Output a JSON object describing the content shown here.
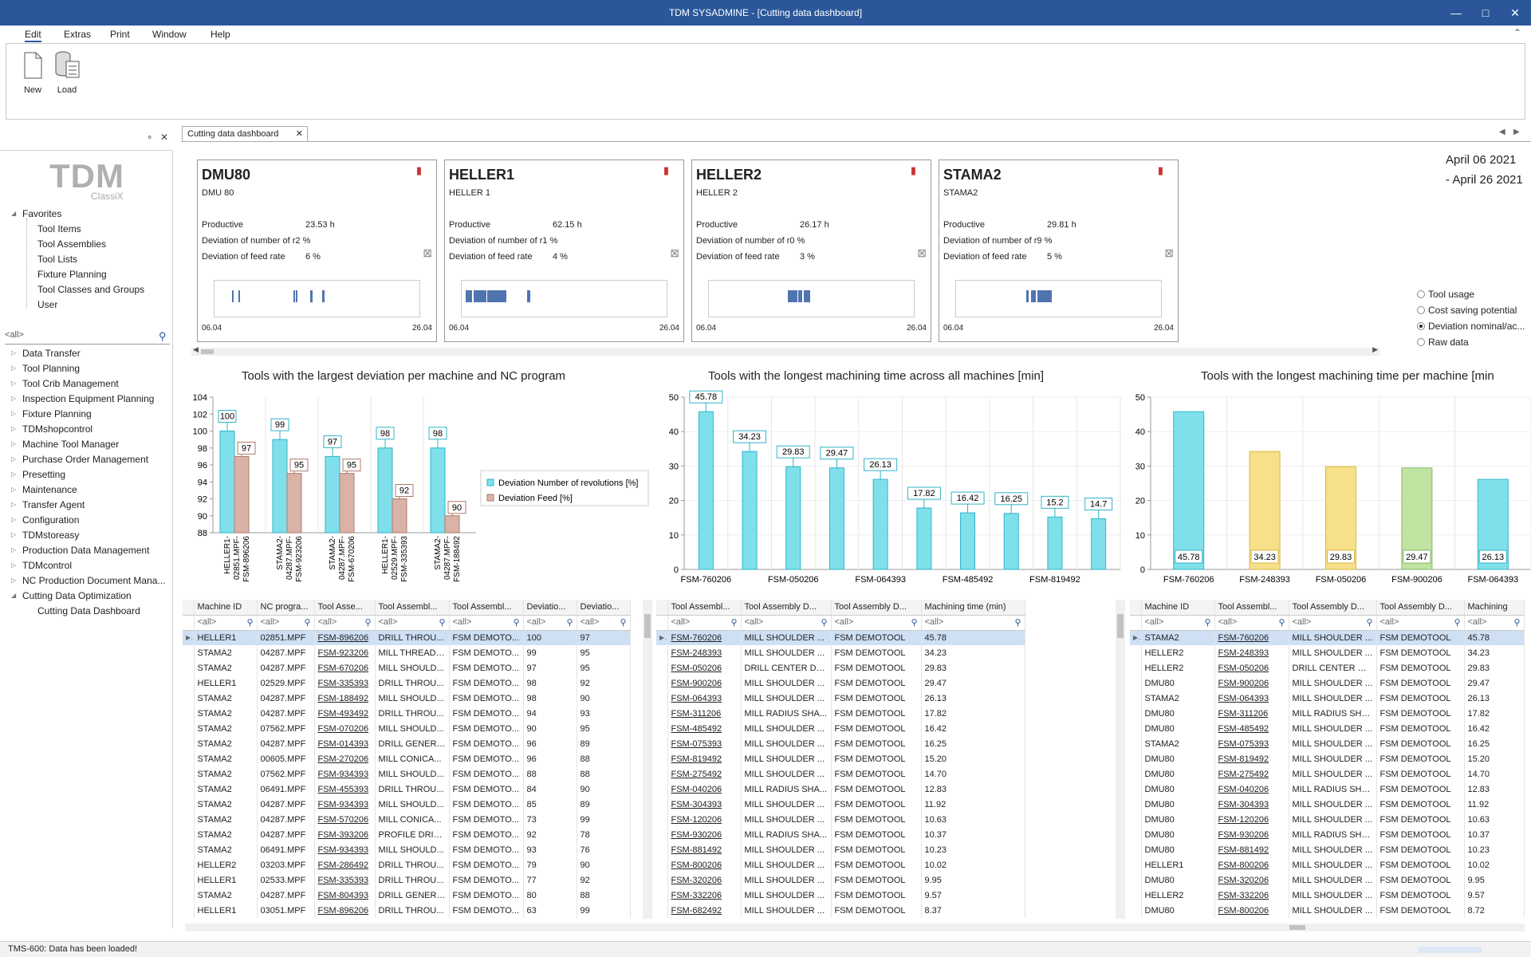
{
  "window": {
    "title": "TDM SYSADMINE - [Cutting data dashboard]"
  },
  "menu": [
    "Edit",
    "Extras",
    "Print",
    "Window",
    "Help"
  ],
  "ribbon": {
    "new_label": "New",
    "load_label": "Load"
  },
  "sidebar": {
    "logo": "TDM",
    "logo_sub": "ClassiX",
    "favorites_label": "Favorites",
    "favorites": [
      "Tool Items",
      "Tool Assemblies",
      "Tool Lists",
      "Fixture Planning",
      "Tool Classes and Groups",
      "User"
    ],
    "search": "<all>",
    "modules": [
      "Data Transfer",
      "Tool Planning",
      "Tool Crib Management",
      "Inspection Equipment Planning",
      "Fixture Planning",
      "TDMshopcontrol",
      "Machine Tool Manager",
      "Purchase Order Management",
      "Presetting",
      "Maintenance",
      "Transfer Agent",
      "Configuration",
      "TDMstoreasy",
      "Production Data Management",
      "TDMcontrol",
      "NC Production Document Mana...",
      "Cutting Data Optimization"
    ],
    "child": "Cutting Data Dashboard"
  },
  "tab": {
    "label": "Cutting data dashboard"
  },
  "cards": [
    {
      "name": "DMU80",
      "sub": "DMU 80",
      "productive": "23.53 h",
      "dev_rev": "2 %",
      "dev_feed": "6 %",
      "start": "06.04",
      "end": "26.04"
    },
    {
      "name": "HELLER1",
      "sub": "HELLER 1",
      "productive": "62.15 h",
      "dev_rev": "1 %",
      "dev_feed": "4 %",
      "start": "06.04",
      "end": "26.04"
    },
    {
      "name": "HELLER2",
      "sub": "HELLER 2",
      "productive": "26.17 h",
      "dev_rev": "0 %",
      "dev_feed": "3 %",
      "start": "06.04",
      "end": "26.04"
    },
    {
      "name": "STAMA2",
      "sub": "STAMA2",
      "productive": "29.81 h",
      "dev_rev": "9 %",
      "dev_feed": "5 %",
      "start": "06.04",
      "end": "26.04"
    }
  ],
  "card_labels": {
    "productive": "Productive",
    "dev_rev": "Deviation of number of r",
    "dev_feed": "Deviation of feed rate"
  },
  "date_range": {
    "from": "April 06 2021",
    "to": "- April 26 2021"
  },
  "radios": [
    {
      "label": "Tool usage",
      "checked": false
    },
    {
      "label": "Cost saving potential",
      "checked": false
    },
    {
      "label": "Deviation nominal/ac...",
      "checked": true
    },
    {
      "label": "Raw data",
      "checked": false
    }
  ],
  "chart_data": [
    {
      "type": "bar",
      "title": "Tools with the largest deviation per machine and NC program",
      "categories": [
        "HELLER1-02851.MPF-FSM-896206",
        "STAMA2-04287.MPF-FSM-923206",
        "STAMA2-04287.MPF-FSM-670206",
        "HELLER1-02529.MPF-FSM-335393",
        "STAMA2-04287.MPF-FSM-188492"
      ],
      "category_lines": [
        [
          "HELLER1-",
          "02851.MPF-",
          "FSM-896206"
        ],
        [
          "STAMA2-",
          "04287.MPF-",
          "FSM-923206"
        ],
        [
          "STAMA2-",
          "04287.MPF-",
          "FSM-670206"
        ],
        [
          "HELLER1-",
          "02529.MPF-",
          "FSM-335393"
        ],
        [
          "STAMA2-",
          "04287.MPF-",
          "FSM-188492"
        ]
      ],
      "series": [
        {
          "name": "Deviation Number of revolutions [%]",
          "values": [
            100,
            99,
            97,
            98,
            98
          ]
        },
        {
          "name": "Deviation Feed [%]",
          "values": [
            97,
            95,
            95,
            92,
            90
          ]
        }
      ],
      "ylim": [
        88,
        104
      ],
      "yticks": [
        "88",
        "90",
        "92",
        "94",
        "96",
        "98",
        "100",
        "102",
        "104"
      ],
      "legend": "right"
    },
    {
      "type": "bar",
      "title": "Tools with the longest machining time across all machines [min]",
      "categories": [
        "FSM-760206",
        "FSM-248393",
        "FSM-050206",
        "FSM-900206",
        "FSM-064393",
        "FSM-311206",
        "FSM-485492",
        "FSM-075393",
        "FSM-819492",
        "FSM-275492"
      ],
      "tick_labels": [
        "FSM-760206",
        "FSM-050206",
        "FSM-064393",
        "FSM-485492",
        "FSM-819492"
      ],
      "values": [
        45.78,
        34.23,
        29.83,
        29.47,
        26.13,
        17.82,
        16.42,
        16.25,
        15.2,
        14.7
      ],
      "labels": [
        "45.78",
        "34.23",
        "29.83",
        "29.47",
        "26.13",
        "17.82",
        "16.42",
        "16.25",
        "15.2",
        "14.7"
      ],
      "ylim": [
        0,
        50
      ],
      "yticks": [
        "0",
        "10",
        "20",
        "30",
        "40",
        "50"
      ]
    },
    {
      "type": "bar",
      "title": "Tools with the longest machining time per machine [min",
      "categories": [
        "FSM-760206",
        "FSM-248393",
        "FSM-050206",
        "FSM-900206",
        "FSM-064393"
      ],
      "values": [
        45.78,
        34.23,
        29.83,
        29.47,
        26.13
      ],
      "labels": [
        "45.78",
        "34.23",
        "29.83",
        "29.47",
        "26.13"
      ],
      "colors": [
        "#7fe0ec",
        "#f7e08a",
        "#f7e08a",
        "#bfe3a0",
        "#7fe0ec"
      ],
      "ylim": [
        0,
        50
      ],
      "yticks": [
        "0",
        "10",
        "20",
        "30",
        "40",
        "50"
      ]
    }
  ],
  "grid1": {
    "headers": [
      "Machine ID",
      "NC progra...",
      "Tool Asse...",
      "Tool Assembl...",
      "Tool Assembl...",
      "Deviatio...",
      "Deviatio..."
    ],
    "filter": "<all>",
    "rows": [
      [
        "HELLER1",
        "02851.MPF",
        "FSM-896206",
        "DRILL THROU...",
        "FSM DEMOTO...",
        "100",
        "97"
      ],
      [
        "STAMA2",
        "04287.MPF",
        "FSM-923206",
        "MILL THREAD ...",
        "FSM DEMOTO...",
        "99",
        "95"
      ],
      [
        "STAMA2",
        "04287.MPF",
        "FSM-670206",
        "MILL SHOULD...",
        "FSM DEMOTO...",
        "97",
        "95"
      ],
      [
        "HELLER1",
        "02529.MPF",
        "FSM-335393",
        "DRILL THROU...",
        "FSM DEMOTO...",
        "98",
        "92"
      ],
      [
        "STAMA2",
        "04287.MPF",
        "FSM-188492",
        "MILL SHOULD...",
        "FSM DEMOTO...",
        "98",
        "90"
      ],
      [
        "STAMA2",
        "04287.MPF",
        "FSM-493492",
        "DRILL THROU...",
        "FSM DEMOTO...",
        "94",
        "93"
      ],
      [
        "STAMA2",
        "07562.MPF",
        "FSM-070206",
        "MILL SHOULD...",
        "FSM DEMOTO...",
        "90",
        "95"
      ],
      [
        "STAMA2",
        "04287.MPF",
        "FSM-014393",
        "DRILL GENERA...",
        "FSM DEMOTO...",
        "96",
        "89"
      ],
      [
        "STAMA2",
        "00605.MPF",
        "FSM-270206",
        "MILL CONICA...",
        "FSM DEMOTO...",
        "96",
        "88"
      ],
      [
        "STAMA2",
        "07562.MPF",
        "FSM-934393",
        "MILL SHOULD...",
        "FSM DEMOTO...",
        "88",
        "88"
      ],
      [
        "STAMA2",
        "06491.MPF",
        "FSM-455393",
        "DRILL THROU...",
        "FSM DEMOTO...",
        "84",
        "90"
      ],
      [
        "STAMA2",
        "04287.MPF",
        "FSM-934393",
        "MILL SHOULD...",
        "FSM DEMOTO...",
        "85",
        "89"
      ],
      [
        "STAMA2",
        "04287.MPF",
        "FSM-570206",
        "MILL CONICA...",
        "FSM DEMOTO...",
        "73",
        "99"
      ],
      [
        "STAMA2",
        "04287.MPF",
        "FSM-393206",
        "PROFILE DRILL...",
        "FSM DEMOTO...",
        "92",
        "78"
      ],
      [
        "STAMA2",
        "06491.MPF",
        "FSM-934393",
        "MILL SHOULD...",
        "FSM DEMOTO...",
        "93",
        "76"
      ],
      [
        "HELLER2",
        "03203.MPF",
        "FSM-286492",
        "DRILL THROU...",
        "FSM DEMOTO...",
        "79",
        "90"
      ],
      [
        "HELLER1",
        "02533.MPF",
        "FSM-335393",
        "DRILL THROU...",
        "FSM DEMOTO...",
        "77",
        "92"
      ],
      [
        "STAMA2",
        "04287.MPF",
        "FSM-804393",
        "DRILL GENERA...",
        "FSM DEMOTO...",
        "80",
        "88"
      ],
      [
        "HELLER1",
        "03051.MPF",
        "FSM-896206",
        "DRILL THROU...",
        "FSM DEMOTO...",
        "63",
        "99"
      ]
    ]
  },
  "grid2": {
    "headers": [
      "Tool Assembl...",
      "Tool Assembly D...",
      "Tool Assembly D...",
      "Machining time (min)"
    ],
    "filter": "<all>",
    "rows": [
      [
        "FSM-760206",
        "MILL SHOULDER ...",
        "FSM DEMOTOOL",
        "45.78"
      ],
      [
        "FSM-248393",
        "MILL SHOULDER ...",
        "FSM DEMOTOOL",
        "34.23"
      ],
      [
        "FSM-050206",
        "DRILL CENTER DR...",
        "FSM DEMOTOOL",
        "29.83"
      ],
      [
        "FSM-900206",
        "MILL SHOULDER ...",
        "FSM DEMOTOOL",
        "29.47"
      ],
      [
        "FSM-064393",
        "MILL SHOULDER ...",
        "FSM DEMOTOOL",
        "26.13"
      ],
      [
        "FSM-311206",
        "MILL RADIUS SHA...",
        "FSM DEMOTOOL",
        "17.82"
      ],
      [
        "FSM-485492",
        "MILL SHOULDER ...",
        "FSM DEMOTOOL",
        "16.42"
      ],
      [
        "FSM-075393",
        "MILL SHOULDER ...",
        "FSM DEMOTOOL",
        "16.25"
      ],
      [
        "FSM-819492",
        "MILL SHOULDER ...",
        "FSM DEMOTOOL",
        "15.20"
      ],
      [
        "FSM-275492",
        "MILL SHOULDER ...",
        "FSM DEMOTOOL",
        "14.70"
      ],
      [
        "FSM-040206",
        "MILL RADIUS SHA...",
        "FSM DEMOTOOL",
        "12.83"
      ],
      [
        "FSM-304393",
        "MILL SHOULDER ...",
        "FSM DEMOTOOL",
        "11.92"
      ],
      [
        "FSM-120206",
        "MILL SHOULDER ...",
        "FSM DEMOTOOL",
        "10.63"
      ],
      [
        "FSM-930206",
        "MILL RADIUS SHA...",
        "FSM DEMOTOOL",
        "10.37"
      ],
      [
        "FSM-881492",
        "MILL SHOULDER ...",
        "FSM DEMOTOOL",
        "10.23"
      ],
      [
        "FSM-800206",
        "MILL SHOULDER ...",
        "FSM DEMOTOOL",
        "10.02"
      ],
      [
        "FSM-320206",
        "MILL SHOULDER ...",
        "FSM DEMOTOOL",
        "9.95"
      ],
      [
        "FSM-332206",
        "MILL SHOULDER ...",
        "FSM DEMOTOOL",
        "9.57"
      ],
      [
        "FSM-682492",
        "MILL SHOULDER ...",
        "FSM DEMOTOOL",
        "8.37"
      ]
    ]
  },
  "grid3": {
    "headers": [
      "Machine ID",
      "Tool Assembl...",
      "Tool Assembly D...",
      "Tool Assembly D...",
      "Machining"
    ],
    "filter": "<all>",
    "rows": [
      [
        "STAMA2",
        "FSM-760206",
        "MILL SHOULDER ...",
        "FSM DEMOTOOL",
        "45.78"
      ],
      [
        "HELLER2",
        "FSM-248393",
        "MILL SHOULDER ...",
        "FSM DEMOTOOL",
        "34.23"
      ],
      [
        "HELLER2",
        "FSM-050206",
        "DRILL CENTER DR...",
        "FSM DEMOTOOL",
        "29.83"
      ],
      [
        "DMU80",
        "FSM-900206",
        "MILL SHOULDER ...",
        "FSM DEMOTOOL",
        "29.47"
      ],
      [
        "STAMA2",
        "FSM-064393",
        "MILL SHOULDER ...",
        "FSM DEMOTOOL",
        "26.13"
      ],
      [
        "DMU80",
        "FSM-311206",
        "MILL RADIUS SHA...",
        "FSM DEMOTOOL",
        "17.82"
      ],
      [
        "DMU80",
        "FSM-485492",
        "MILL SHOULDER ...",
        "FSM DEMOTOOL",
        "16.42"
      ],
      [
        "STAMA2",
        "FSM-075393",
        "MILL SHOULDER ...",
        "FSM DEMOTOOL",
        "16.25"
      ],
      [
        "DMU80",
        "FSM-819492",
        "MILL SHOULDER ...",
        "FSM DEMOTOOL",
        "15.20"
      ],
      [
        "DMU80",
        "FSM-275492",
        "MILL SHOULDER ...",
        "FSM DEMOTOOL",
        "14.70"
      ],
      [
        "DMU80",
        "FSM-040206",
        "MILL RADIUS SHA...",
        "FSM DEMOTOOL",
        "12.83"
      ],
      [
        "DMU80",
        "FSM-304393",
        "MILL SHOULDER ...",
        "FSM DEMOTOOL",
        "11.92"
      ],
      [
        "DMU80",
        "FSM-120206",
        "MILL SHOULDER ...",
        "FSM DEMOTOOL",
        "10.63"
      ],
      [
        "DMU80",
        "FSM-930206",
        "MILL RADIUS SHA...",
        "FSM DEMOTOOL",
        "10.37"
      ],
      [
        "DMU80",
        "FSM-881492",
        "MILL SHOULDER ...",
        "FSM DEMOTOOL",
        "10.23"
      ],
      [
        "HELLER1",
        "FSM-800206",
        "MILL SHOULDER ...",
        "FSM DEMOTOOL",
        "10.02"
      ],
      [
        "DMU80",
        "FSM-320206",
        "MILL SHOULDER ...",
        "FSM DEMOTOOL",
        "9.95"
      ],
      [
        "HELLER2",
        "FSM-332206",
        "MILL SHOULDER ...",
        "FSM DEMOTOOL",
        "9.57"
      ],
      [
        "DMU80",
        "FSM-800206",
        "MILL SHOULDER ...",
        "FSM DEMOTOOL",
        "8.72"
      ]
    ]
  },
  "status": {
    "text": "TMS-600: Data has been loaded!"
  },
  "colors": {
    "titlebar": "#2b579a",
    "bar_cyan": "#7fe0ec",
    "bar_brown": "#d9b3a8",
    "strip_blue": "#4f74b0"
  }
}
